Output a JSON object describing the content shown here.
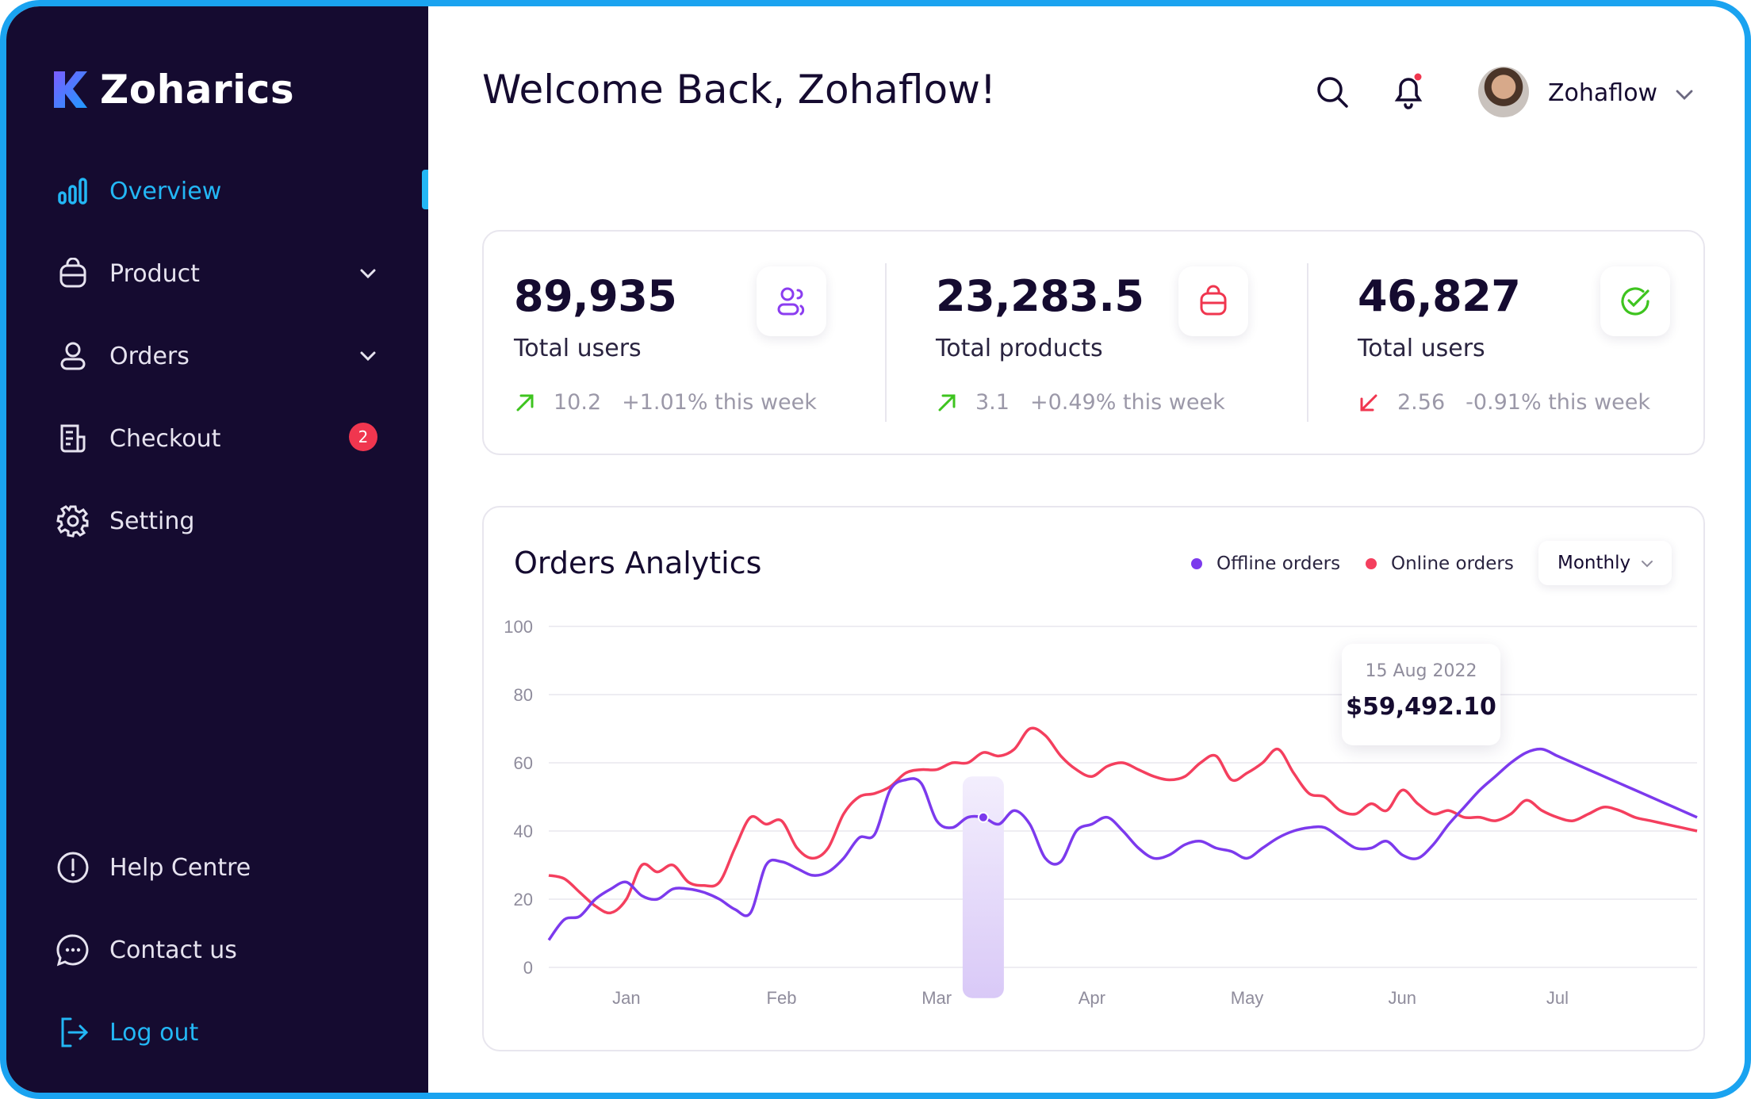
{
  "brand": {
    "name": "Zoharics"
  },
  "sidebar": {
    "items": [
      {
        "label": "Overview",
        "icon": "bar-chart-icon",
        "active": true
      },
      {
        "label": "Product",
        "icon": "bag-icon"
      },
      {
        "label": "Orders",
        "icon": "user-icon"
      },
      {
        "label": "Checkout",
        "icon": "receipt-icon",
        "badge": "2"
      },
      {
        "label": "Setting",
        "icon": "gear-icon"
      }
    ],
    "bottom": [
      {
        "label": "Help Centre",
        "icon": "info-icon"
      },
      {
        "label": "Contact us",
        "icon": "chat-icon"
      },
      {
        "label": "Log out",
        "icon": "logout-icon"
      }
    ]
  },
  "header": {
    "welcome": "Welcome Back, Zohaflow!",
    "user_name": "Zohaflow"
  },
  "stats": [
    {
      "value": "89,935",
      "label": "Total users",
      "delta": "10.2",
      "change": "+1.01% this week",
      "direction": "up",
      "icon": "users-icon"
    },
    {
      "value": "23,283.5",
      "label": "Total products",
      "delta": "3.1",
      "change": "+0.49% this week",
      "direction": "up",
      "icon": "bag-icon"
    },
    {
      "value": "46,827",
      "label": "Total users",
      "delta": "2.56",
      "change": "-0.91% this week",
      "direction": "down",
      "icon": "check-circle-icon"
    }
  ],
  "colors": {
    "offline": "#7c3aed",
    "online": "#f43f5e",
    "accent": "#23b7f5",
    "up": "#3ec41f",
    "down": "#f0364f"
  },
  "chart": {
    "title": "Orders Analytics",
    "legend_offline": "Offline orders",
    "legend_online": "Online orders",
    "period": "Monthly",
    "tooltip_date": "15 Aug 2022",
    "tooltip_value": "$59,492.10"
  },
  "chart_data": {
    "type": "line",
    "title": "Orders Analytics",
    "categories": [
      "Jan",
      "Feb",
      "Mar",
      "Apr",
      "May",
      "Jun",
      "Jul"
    ],
    "y_ticks": [
      0,
      20,
      40,
      60,
      80,
      100
    ],
    "ylim": [
      0,
      100
    ],
    "xlim": [
      0.5,
      7.9
    ],
    "legend_position": "top-right",
    "grid": true,
    "series": [
      {
        "name": "Offline orders",
        "color": "#7c3aed",
        "x": [
          0.5,
          0.6,
          0.7,
          0.8,
          0.9,
          1.0,
          1.1,
          1.2,
          1.3,
          1.4,
          1.5,
          1.6,
          1.7,
          1.8,
          1.9,
          2.0,
          2.1,
          2.2,
          2.3,
          2.4,
          2.5,
          2.6,
          2.7,
          2.8,
          2.9,
          3.0,
          3.1,
          3.2,
          3.3,
          3.4,
          3.5,
          3.6,
          3.7,
          3.8,
          3.9,
          4.0,
          4.1,
          4.2,
          4.3,
          4.4,
          4.5,
          4.6,
          4.7,
          4.8,
          4.9,
          5.0,
          5.1,
          5.2,
          5.3,
          5.4,
          5.5,
          5.6,
          5.7,
          5.8,
          5.9,
          6.0,
          6.1,
          6.2,
          6.3,
          6.4,
          6.5,
          6.6,
          6.7,
          6.8,
          6.9,
          7.0,
          7.1,
          7.2,
          7.3,
          7.4,
          7.5,
          7.6,
          7.7,
          7.8,
          7.9
        ],
        "values": [
          8,
          14,
          15,
          20,
          23,
          25,
          21,
          20,
          23,
          23,
          22,
          20,
          17,
          16,
          30,
          31,
          29,
          27,
          28,
          32,
          38,
          39,
          52,
          55,
          54,
          43,
          41,
          44,
          44,
          42,
          46,
          42,
          32,
          31,
          40,
          42,
          44,
          40,
          35,
          32,
          33,
          36,
          37,
          35,
          34,
          32,
          35,
          38,
          40,
          41,
          41,
          38,
          35,
          35,
          37,
          33,
          32,
          36,
          42,
          47,
          52,
          56,
          60,
          63,
          64,
          62,
          60,
          58,
          56,
          54,
          52,
          50,
          48,
          46,
          44
        ],
        "note": "x positions are month indices (1=Jan ... 7=Jul)"
      },
      {
        "name": "Online orders",
        "color": "#f43f5e",
        "x": [
          0.5,
          0.6,
          0.7,
          0.8,
          0.9,
          1.0,
          1.1,
          1.2,
          1.3,
          1.4,
          1.5,
          1.6,
          1.7,
          1.8,
          1.9,
          2.0,
          2.1,
          2.2,
          2.3,
          2.4,
          2.5,
          2.6,
          2.7,
          2.8,
          2.9,
          3.0,
          3.1,
          3.2,
          3.3,
          3.4,
          3.5,
          3.6,
          3.7,
          3.8,
          3.9,
          4.0,
          4.1,
          4.2,
          4.3,
          4.4,
          4.5,
          4.6,
          4.7,
          4.8,
          4.9,
          5.0,
          5.1,
          5.2,
          5.3,
          5.4,
          5.5,
          5.6,
          5.7,
          5.8,
          5.9,
          6.0,
          6.1,
          6.2,
          6.3,
          6.4,
          6.5,
          6.6,
          6.7,
          6.8,
          6.9,
          7.0,
          7.1,
          7.2,
          7.3,
          7.4,
          7.5,
          7.6,
          7.7,
          7.8,
          7.9
        ],
        "values": [
          27,
          26,
          22,
          18,
          16,
          20,
          30,
          28,
          30,
          25,
          24,
          25,
          35,
          44,
          42,
          43,
          35,
          32,
          35,
          45,
          50,
          51,
          53,
          57,
          58,
          58,
          60,
          60,
          63,
          62,
          64,
          70,
          68,
          62,
          58,
          56,
          59,
          60,
          58,
          56,
          55,
          56,
          60,
          62,
          55,
          57,
          60,
          64,
          57,
          51,
          50,
          46,
          45,
          48,
          46,
          52,
          48,
          45,
          46,
          44,
          44,
          43,
          45,
          49,
          46,
          44,
          43,
          45,
          47,
          46,
          44,
          43,
          42,
          41,
          40
        ]
      }
    ]
  }
}
